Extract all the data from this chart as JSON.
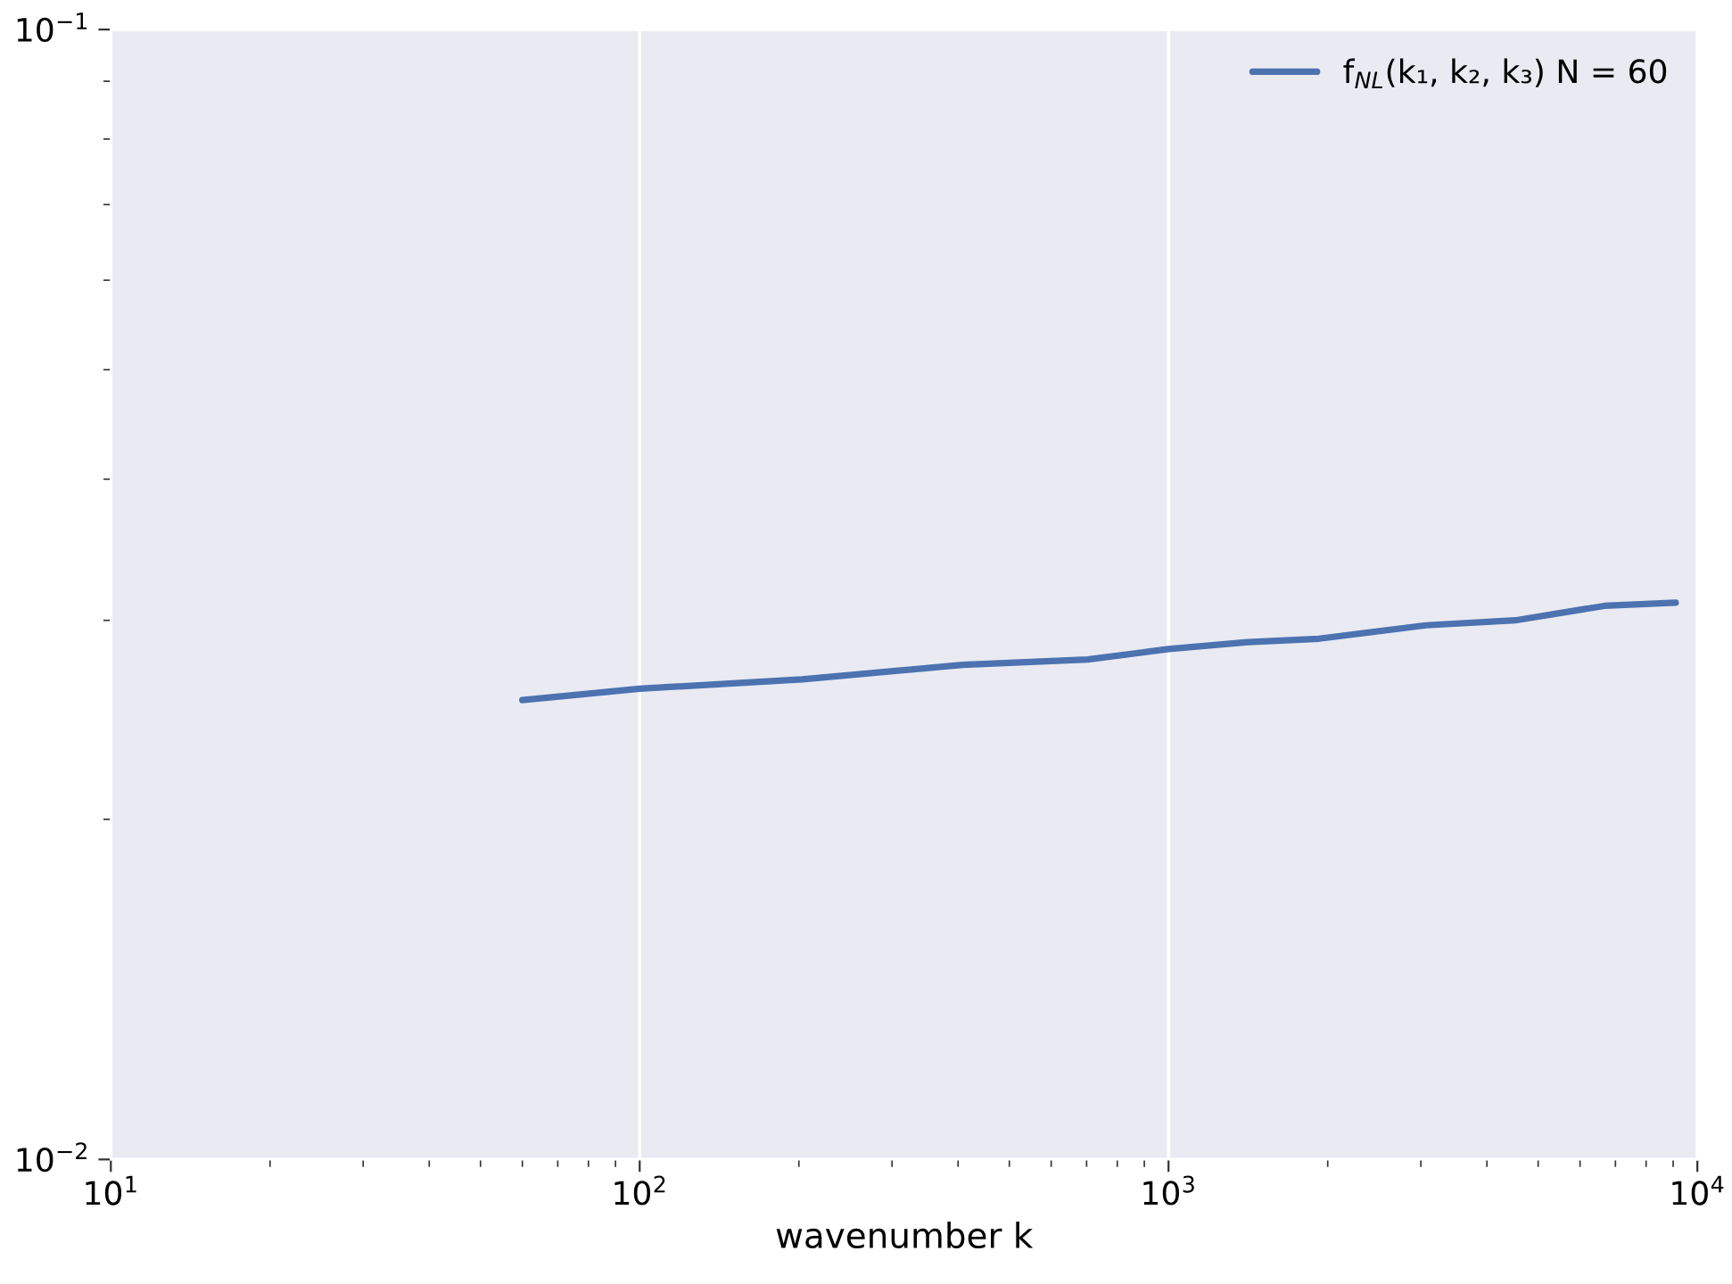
{
  "chart_data": {
    "type": "line",
    "xlabel": "wavenumber k",
    "log": "xy",
    "x": [
      60,
      100,
      203,
      408,
      703,
      1000,
      1413,
      1927,
      3070,
      4525,
      6670,
      9100
    ],
    "series": [
      {
        "name": "f$_{NL}$(k₁, k₂, k₃) N = 60",
        "color": "#4c72b0",
        "values": [
          0.0255,
          0.0261,
          0.0266,
          0.0274,
          0.0277,
          0.0283,
          0.0287,
          0.0289,
          0.0297,
          0.03,
          0.0309,
          0.0311
        ]
      }
    ],
    "xlim": [
      10,
      10000
    ],
    "ylim": [
      0.01,
      0.1
    ],
    "xticks": [
      {
        "value": 10,
        "label": "10$^{1}$"
      },
      {
        "value": 100,
        "label": "10$^{2}$"
      },
      {
        "value": 1000,
        "label": "10$^{3}$"
      },
      {
        "value": 10000,
        "label": "10$^{4}$"
      }
    ],
    "yticks": [
      {
        "value": 0.01,
        "label": "10$^{−2}$"
      },
      {
        "value": 0.1,
        "label": "10$^{−1}$"
      }
    ],
    "grid": true,
    "legend": "top right",
    "marker": "none",
    "line_style": "solid"
  }
}
